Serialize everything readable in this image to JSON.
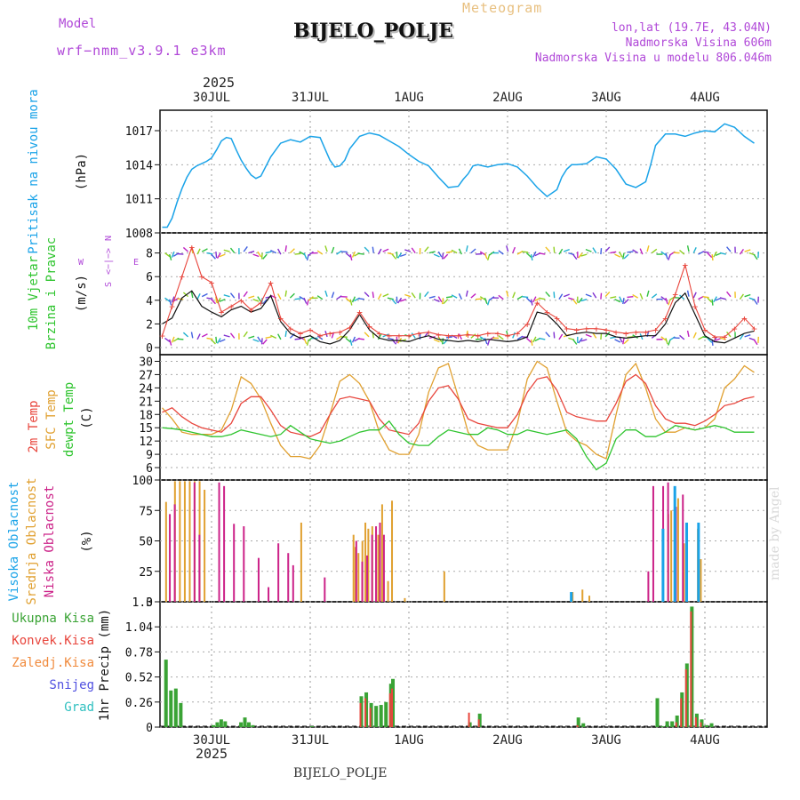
{
  "header": {
    "model_label": "Model",
    "model_name": "wrf−nmm_v3.9.1  e3km",
    "station": "BIJELO_POLJE",
    "product": "Meteogram",
    "lonlat": "lon,lat (19.7E, 43.04N)",
    "altitude": "Nadmorska Visina 606m",
    "model_altitude": "Nadmorska Visina u modelu 806.046m",
    "year": "2025",
    "footer_station": "BIJELO_POLJE",
    "watermark": "made by Angel"
  },
  "colors": {
    "pressure": "#1aa3e8",
    "temp2m": "#e8453c",
    "sfc": "#e0a030",
    "dewpt": "#2ec42e",
    "high": "#1aa3e8",
    "mid": "#e0a030",
    "low": "#cc2288",
    "total": "#3aa335",
    "conv": "#e8453c",
    "freeze": "#f08a3c",
    "snow": "#5050e0",
    "hail": "#30c0c0",
    "title": "#7a7a7a",
    "magenta": "#b048d8",
    "header_orange": "#e8c080"
  },
  "chart_data": [
    {
      "panel": "pressure",
      "type": "line",
      "ylabel_left": "Pritisak na nivou mora",
      "unit": "(hPa)",
      "yticks": [
        "1017",
        "1014",
        "1011",
        "1008"
      ],
      "ylim": [
        1008,
        1018.8
      ],
      "x_days": [
        "30JUL",
        "31JUL",
        "1AUG",
        "2AUG",
        "3AUG",
        "4AUG"
      ],
      "x": [
        -0.5,
        -0.45,
        -0.4,
        -0.35,
        -0.3,
        -0.25,
        -0.2,
        -0.15,
        -0.1,
        -0.05,
        0,
        0.05,
        0.1,
        0.15,
        0.2,
        0.25,
        0.3,
        0.35,
        0.4,
        0.45,
        0.5,
        0.6,
        0.7,
        0.8,
        0.9,
        1,
        1.1,
        1.15,
        1.2,
        1.25,
        1.3,
        1.35,
        1.4,
        1.5,
        1.6,
        1.7,
        1.8,
        1.9,
        2,
        2.1,
        2.2,
        2.3,
        2.4,
        2.5,
        2.55,
        2.6,
        2.65,
        2.7,
        2.75,
        2.8,
        2.9,
        3,
        3.1,
        3.2,
        3.3,
        3.4,
        3.5,
        3.55,
        3.6,
        3.65,
        3.7,
        3.8,
        3.9,
        4,
        4.1,
        4.2,
        4.3,
        4.4,
        4.45,
        4.5,
        4.6,
        4.7,
        4.8,
        4.9,
        5,
        5.1,
        5.2,
        5.3,
        5.4,
        5.5
      ],
      "values": [
        1008.5,
        1008.5,
        1009.3,
        1010.7,
        1011.9,
        1012.9,
        1013.6,
        1013.9,
        1014.1,
        1014.3,
        1014.6,
        1015.3,
        1016.1,
        1016.4,
        1016.3,
        1015.3,
        1014.4,
        1013.7,
        1013.1,
        1012.8,
        1013.0,
        1014.7,
        1015.9,
        1016.2,
        1016.0,
        1016.5,
        1016.4,
        1015.4,
        1014.4,
        1013.8,
        1013.9,
        1014.4,
        1015.4,
        1016.5,
        1016.8,
        1016.6,
        1016.1,
        1015.6,
        1014.9,
        1014.3,
        1013.9,
        1012.9,
        1012.0,
        1012.1,
        1012.7,
        1013.2,
        1013.9,
        1014.0,
        1013.9,
        1013.8,
        1014.0,
        1014.1,
        1013.8,
        1013.0,
        1012.0,
        1011.2,
        1011.8,
        1012.9,
        1013.6,
        1014.0,
        1014.0,
        1014.1,
        1014.7,
        1014.5,
        1013.6,
        1012.3,
        1012.0,
        1012.5,
        1014.0,
        1015.7,
        1016.7,
        1016.7,
        1016.5,
        1016.8,
        1017.0,
        1016.9,
        1017.6,
        1017.3,
        1016.5,
        1015.9
      ]
    },
    {
      "panel": "wind",
      "type": "line",
      "ylabel_left": "10m Vjetar",
      "ylabel_left2": "Brzina i Pravac",
      "unit": "(m/s)",
      "compass": [
        "N",
        "<−|−>",
        "S",
        "W",
        "E"
      ],
      "yticks": [
        "8",
        "6",
        "4",
        "2",
        "0"
      ],
      "ylim": [
        -0.6,
        9.7
      ],
      "x": [
        -0.5,
        -0.4,
        -0.3,
        -0.2,
        -0.1,
        0,
        0.1,
        0.2,
        0.3,
        0.4,
        0.5,
        0.6,
        0.7,
        0.8,
        0.9,
        1,
        1.1,
        1.2,
        1.3,
        1.4,
        1.5,
        1.6,
        1.7,
        1.8,
        1.9,
        2,
        2.1,
        2.2,
        2.3,
        2.4,
        2.5,
        2.6,
        2.7,
        2.8,
        2.9,
        3,
        3.1,
        3.2,
        3.3,
        3.4,
        3.5,
        3.6,
        3.7,
        3.8,
        3.9,
        4,
        4.1,
        4.2,
        4.3,
        4.4,
        4.5,
        4.6,
        4.7,
        4.8,
        4.9,
        5,
        5.1,
        5.2,
        5.3,
        5.4,
        5.5
      ],
      "mean_speed": [
        2.0,
        2.5,
        4.2,
        4.8,
        3.5,
        3.0,
        2.6,
        3.2,
        3.5,
        3.0,
        3.3,
        4.4,
        2.2,
        1.2,
        0.8,
        1.0,
        0.5,
        0.3,
        0.6,
        1.5,
        2.8,
        1.5,
        0.8,
        0.6,
        0.6,
        0.5,
        0.8,
        1.0,
        0.7,
        0.6,
        0.5,
        0.6,
        0.5,
        0.7,
        0.6,
        0.5,
        0.6,
        0.9,
        3.0,
        2.8,
        2.0,
        1.0,
        1.2,
        1.3,
        1.2,
        1.2,
        0.9,
        0.8,
        0.9,
        1.0,
        1.0,
        2.0,
        3.8,
        4.6,
        2.8,
        1.0,
        0.5,
        0.4,
        0.8,
        1.2,
        1.4
      ],
      "gust": [
        1.0,
        3.5,
        6.0,
        8.5,
        6.0,
        5.5,
        3.0,
        3.5,
        4.0,
        3.2,
        3.8,
        5.5,
        2.5,
        1.6,
        1.2,
        1.5,
        1.0,
        1.2,
        1.3,
        1.7,
        3.0,
        1.8,
        1.2,
        1.0,
        1.0,
        1.0,
        1.2,
        1.3,
        1.1,
        1.0,
        1.0,
        1.1,
        1.0,
        1.2,
        1.2,
        1.0,
        1.2,
        2.0,
        3.8,
        3.0,
        2.5,
        1.6,
        1.5,
        1.6,
        1.6,
        1.5,
        1.3,
        1.2,
        1.3,
        1.3,
        1.5,
        2.5,
        4.5,
        7.0,
        3.5,
        1.5,
        0.9,
        0.9,
        1.6,
        2.5,
        1.6
      ]
    },
    {
      "panel": "temperature",
      "type": "line",
      "ylabel_left": [
        "2m Temp",
        "SFC Temp",
        "dewpt Temp"
      ],
      "unit": "(C)",
      "yticks": [
        "30",
        "27",
        "24",
        "21",
        "18",
        "15",
        "12",
        "9",
        "6"
      ],
      "ylim": [
        3.2,
        31.5
      ],
      "x": [
        -0.5,
        -0.4,
        -0.3,
        -0.2,
        -0.1,
        0,
        0.1,
        0.2,
        0.3,
        0.4,
        0.5,
        0.6,
        0.7,
        0.8,
        0.9,
        1,
        1.1,
        1.2,
        1.3,
        1.4,
        1.5,
        1.6,
        1.7,
        1.8,
        1.9,
        2,
        2.1,
        2.2,
        2.3,
        2.4,
        2.5,
        2.6,
        2.7,
        2.8,
        2.9,
        3,
        3.1,
        3.2,
        3.3,
        3.4,
        3.5,
        3.6,
        3.7,
        3.8,
        3.9,
        4,
        4.1,
        4.2,
        4.3,
        4.4,
        4.5,
        4.6,
        4.7,
        4.8,
        4.9,
        5,
        5.1,
        5.2,
        5.3,
        5.4,
        5.5
      ],
      "t2m": [
        18.5,
        19.5,
        17.5,
        16.0,
        15.0,
        14.5,
        14.0,
        16.0,
        20.5,
        22.0,
        22.0,
        19.0,
        15.5,
        14.0,
        13.5,
        13.0,
        14.0,
        18.0,
        21.5,
        22.0,
        21.5,
        21.0,
        17.0,
        14.5,
        14.0,
        13.5,
        16.0,
        21.0,
        24.0,
        24.5,
        21.5,
        17.0,
        16.0,
        15.5,
        15.0,
        15.0,
        18.0,
        23.0,
        26.0,
        26.5,
        23.5,
        18.5,
        17.5,
        17.0,
        16.5,
        16.5,
        20.5,
        25.5,
        27.0,
        25.0,
        20.0,
        17.0,
        16.0,
        16.0,
        15.5,
        16.5,
        18.0,
        20.0,
        20.5,
        21.5,
        22.0
      ],
      "sfc": [
        19.5,
        17.0,
        14.0,
        13.5,
        13.5,
        13.5,
        14.5,
        19.0,
        26.5,
        25.0,
        21.5,
        16.0,
        11.0,
        8.5,
        8.5,
        8.0,
        11.0,
        18.0,
        25.5,
        27.0,
        25.0,
        21.0,
        14.0,
        10.0,
        9.0,
        9.0,
        13.5,
        23.0,
        28.5,
        29.5,
        22.0,
        14.0,
        11.0,
        10.0,
        10.0,
        10.0,
        16.0,
        26.0,
        30.0,
        28.5,
        21.0,
        14.0,
        12.0,
        11.0,
        9.0,
        8.0,
        18.0,
        27.0,
        29.5,
        24.0,
        17.0,
        14.0,
        14.0,
        15.0,
        14.5,
        15.0,
        17.0,
        24.0,
        26.0,
        29.0,
        27.5
      ],
      "dewpt": [
        15.0,
        14.8,
        14.5,
        14.0,
        13.5,
        13.0,
        13.0,
        13.5,
        14.5,
        14.0,
        13.5,
        13.0,
        13.5,
        15.5,
        14.0,
        12.5,
        12.0,
        11.5,
        12.0,
        13.0,
        14.0,
        14.5,
        14.5,
        16.5,
        13.5,
        11.5,
        11.0,
        11.0,
        13.0,
        14.5,
        14.0,
        13.5,
        13.5,
        15.0,
        14.5,
        13.5,
        13.5,
        14.5,
        14.0,
        13.5,
        14.0,
        14.5,
        12.5,
        8.5,
        5.5,
        7.0,
        12.5,
        14.5,
        14.5,
        13.0,
        13.0,
        14.0,
        15.5,
        15.0,
        14.5,
        15.0,
        15.5,
        15.0,
        14.0,
        14.0,
        14.0
      ]
    },
    {
      "panel": "cloud",
      "type": "bar",
      "ylabel_left": [
        "Visoka Oblacnost",
        "Srednja Oblacnost",
        "Niska Oblacnost"
      ],
      "unit": "(%)",
      "yticks": [
        "100",
        "75",
        "50",
        "25",
        "0"
      ],
      "ylim": [
        0,
        100
      ],
      "x_high": [
        3.65,
        4.58,
        4.7,
        4.82,
        4.94
      ],
      "high": [
        8,
        60,
        95,
        65,
        65
      ],
      "x_mid": [
        -0.47,
        -0.38,
        -0.33,
        -0.28,
        -0.23,
        -0.18,
        -0.13,
        -0.08,
        0.9,
        1.43,
        1.45,
        1.48,
        1.52,
        1.55,
        1.58,
        1.62,
        1.68,
        1.72,
        1.78,
        1.82,
        1.95,
        2.35,
        3.65,
        3.75,
        3.82,
        4.62,
        4.65,
        4.72,
        4.78,
        4.92,
        4.95
      ],
      "mid": [
        82,
        99,
        99,
        99,
        99,
        99,
        99,
        92,
        65,
        55,
        45,
        40,
        50,
        65,
        60,
        62,
        55,
        80,
        17,
        83,
        3,
        25,
        8,
        10,
        5,
        72,
        75,
        85,
        48,
        60,
        35
      ],
      "x_low": [
        -0.45,
        -0.4,
        -0.2,
        -0.15,
        0.05,
        0.1,
        0.2,
        0.3,
        0.45,
        0.55,
        0.65,
        0.75,
        0.8,
        1.12,
        1.44,
        1.5,
        1.55,
        1.6,
        1.64,
        1.68,
        1.72,
        4.4,
        4.45,
        4.55,
        4.6,
        4.68,
        4.75
      ],
      "low": [
        72,
        80,
        98,
        55,
        98,
        95,
        64,
        62,
        36,
        12,
        48,
        40,
        30,
        20,
        50,
        33,
        38,
        55,
        62,
        65,
        55,
        25,
        95,
        95,
        98,
        78,
        88
      ]
    },
    {
      "panel": "precip",
      "type": "bar",
      "ylabel_left": [
        "Ukupna Kisa",
        "Konvek.Kisa",
        "Zaledj.Kisa",
        "Snijeg",
        "Grad"
      ],
      "unit": "1hr Precip (mm)",
      "yticks": [
        "1.3",
        "1.04",
        "0.78",
        "0.52",
        "0.26",
        "0"
      ],
      "ylim": [
        0,
        1.3
      ],
      "x_labels_bottom": [
        "30JUL",
        "31JUL",
        "1AUG",
        "2AUG",
        "3AUG",
        "4AUG"
      ],
      "x": [
        -0.48,
        -0.43,
        -0.38,
        -0.33,
        0.0,
        0.04,
        0.08,
        0.12,
        0.28,
        0.32,
        0.36,
        0.4,
        1.0,
        1.5,
        1.55,
        1.6,
        1.65,
        1.7,
        1.75,
        1.8,
        1.82,
        2.6,
        2.7,
        3.7,
        3.75,
        4.5,
        4.55,
        4.6,
        4.65,
        4.7,
        4.75,
        4.8,
        4.85,
        4.9,
        4.95,
        5.0,
        5.05
      ],
      "total": [
        0.7,
        0.38,
        0.4,
        0.25,
        0.02,
        0.05,
        0.08,
        0.06,
        0.05,
        0.1,
        0.05,
        0.02,
        0.01,
        0.32,
        0.36,
        0.25,
        0.22,
        0.23,
        0.26,
        0.45,
        0.5,
        0.05,
        0.14,
        0.1,
        0.04,
        0.3,
        0.01,
        0.06,
        0.06,
        0.12,
        0.36,
        0.66,
        1.25,
        0.14,
        0.08,
        0.02,
        0.04
      ],
      "convective": [
        0.0,
        0.0,
        0.0,
        0.0,
        0.0,
        0.0,
        0.0,
        0.0,
        0.0,
        0.0,
        0.0,
        0.0,
        0.0,
        0.25,
        0.3,
        0.2,
        0.0,
        0.0,
        0.0,
        0.35,
        0.4,
        0.15,
        0.08,
        0.02,
        0.0,
        0.0,
        0.0,
        0.0,
        0.0,
        0.05,
        0.3,
        0.6,
        1.2,
        0.1,
        0.05,
        0.0,
        0.0
      ]
    }
  ]
}
